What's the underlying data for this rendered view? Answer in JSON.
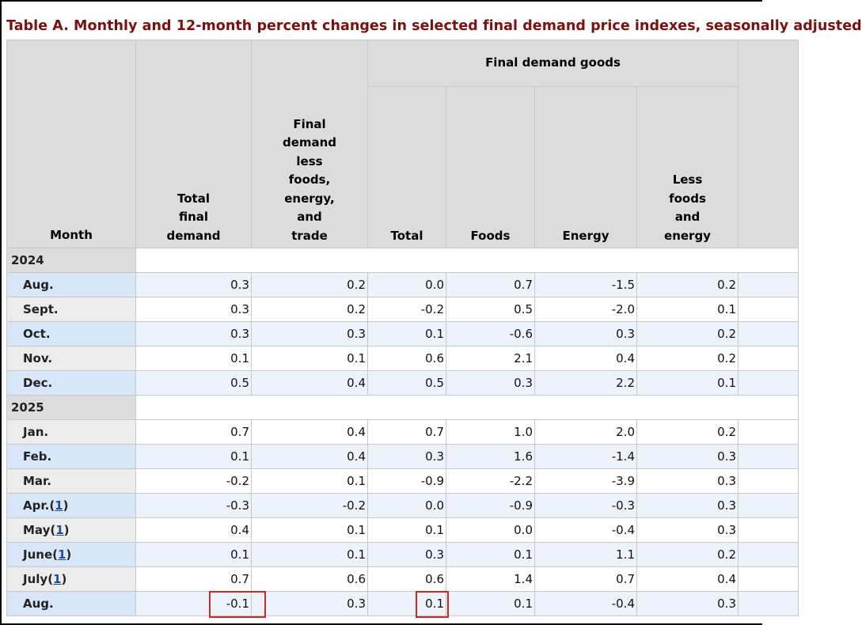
{
  "title": "Table A. Monthly and 12-month percent changes in selected final demand price indexes, seasonally adjusted",
  "headers": {
    "month": "Month",
    "total_final_demand": "Total final demand",
    "final_demand_less": "Final demand less foods, energy, and trade",
    "goods_group": "Final demand goods",
    "goods_total": "Total",
    "goods_foods": "Foods",
    "goods_energy": "Energy",
    "goods_less": "Less foods and energy"
  },
  "years": [
    "2024",
    "2025"
  ],
  "note_marker": "1",
  "rows_2024": [
    {
      "month": "Aug.",
      "tfd": "0.3",
      "fdl": "0.2",
      "total": "0.0",
      "foods": "0.7",
      "energy": "-1.5",
      "less": "0.2"
    },
    {
      "month": "Sept.",
      "tfd": "0.3",
      "fdl": "0.2",
      "total": "-0.2",
      "foods": "0.5",
      "energy": "-2.0",
      "less": "0.1"
    },
    {
      "month": "Oct.",
      "tfd": "0.3",
      "fdl": "0.3",
      "total": "0.1",
      "foods": "-0.6",
      "energy": "0.3",
      "less": "0.2"
    },
    {
      "month": "Nov.",
      "tfd": "0.1",
      "fdl": "0.1",
      "total": "0.6",
      "foods": "2.1",
      "energy": "0.4",
      "less": "0.2"
    },
    {
      "month": "Dec.",
      "tfd": "0.5",
      "fdl": "0.4",
      "total": "0.5",
      "foods": "0.3",
      "energy": "2.2",
      "less": "0.1"
    }
  ],
  "rows_2025": [
    {
      "month": "Jan.",
      "tfd": "0.7",
      "fdl": "0.4",
      "total": "0.7",
      "foods": "1.0",
      "energy": "2.0",
      "less": "0.2"
    },
    {
      "month": "Feb.",
      "tfd": "0.1",
      "fdl": "0.4",
      "total": "0.3",
      "foods": "1.6",
      "energy": "-1.4",
      "less": "0.3"
    },
    {
      "month": "Mar.",
      "tfd": "-0.2",
      "fdl": "0.1",
      "total": "-0.9",
      "foods": "-2.2",
      "energy": "-3.9",
      "less": "0.3"
    },
    {
      "month": "Apr.",
      "note": true,
      "tfd": "-0.3",
      "fdl": "-0.2",
      "total": "0.0",
      "foods": "-0.9",
      "energy": "-0.3",
      "less": "0.3"
    },
    {
      "month": "May",
      "note": true,
      "tfd": "0.4",
      "fdl": "0.1",
      "total": "0.1",
      "foods": "0.0",
      "energy": "-0.4",
      "less": "0.3"
    },
    {
      "month": "June",
      "note": true,
      "tfd": "0.1",
      "fdl": "0.1",
      "total": "0.3",
      "foods": "0.1",
      "energy": "1.1",
      "less": "0.2"
    },
    {
      "month": "July",
      "note": true,
      "tfd": "0.7",
      "fdl": "0.6",
      "total": "0.6",
      "foods": "1.4",
      "energy": "0.7",
      "less": "0.4"
    },
    {
      "month": "Aug.",
      "tfd": "-0.1",
      "fdl": "0.3",
      "total": "0.1",
      "foods": "0.1",
      "energy": "-0.4",
      "less": "0.3",
      "highlight": [
        "tfd",
        "total"
      ]
    }
  ],
  "colors": {
    "title": "#7a1010",
    "header_bg": "#dcdcdc",
    "row_label_blue": "#d7e6f8",
    "row_blue": "#eef3fb",
    "highlight_box": "#cc2a2a",
    "note_link": "#1f4b99"
  }
}
